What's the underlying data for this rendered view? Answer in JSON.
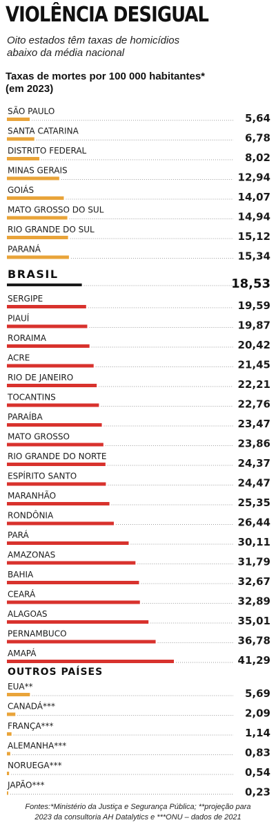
{
  "header": {
    "title": "VIOLÊNCIA DESIGUAL",
    "subtitle_line1": "Oito estados têm taxas de homicídios",
    "subtitle_line2": "abaixo da média nacional",
    "chart_title_line1": "Taxas de mortes por 100 000 habitantes*",
    "chart_title_line2": "(em 2023)"
  },
  "colors": {
    "below_average": "#e9a43a",
    "above_average": "#d8322d",
    "national": "#1a1a1a"
  },
  "chart_data": {
    "type": "bar",
    "orientation": "horizontal",
    "title": "Taxas de mortes por 100 000 habitantes* (em 2023)",
    "groups": [
      {
        "name": "below_average",
        "categories": [
          "SÃO PAULO",
          "SANTA CATARINA",
          "DISTRITO FEDERAL",
          "MINAS GERAIS",
          "GOIÁS",
          "MATO GROSSO DO SUL",
          "RIO GRANDE DO SUL",
          "PARANÁ"
        ],
        "values": [
          5.64,
          6.78,
          8.02,
          12.94,
          14.07,
          14.94,
          15.12,
          15.34
        ],
        "labels": [
          "5,64",
          "6,78",
          "8,02",
          "12,94",
          "14,07",
          "14,94",
          "15,12",
          "15,34"
        ]
      },
      {
        "name": "national",
        "categories": [
          "BRASIL"
        ],
        "values": [
          18.53
        ],
        "labels": [
          "18,53"
        ]
      },
      {
        "name": "above_average",
        "categories": [
          "SERGIPE",
          "PIAUÍ",
          "RORAIMA",
          "ACRE",
          "RIO DE JANEIRO",
          "TOCANTINS",
          "PARAÍBA",
          "MATO GROSSO",
          "RIO GRANDE DO NORTE",
          "ESPÍRITO SANTO",
          "MARANHÃO",
          "RONDÔNIA",
          "PARÁ",
          "AMAZONAS",
          "BAHIA",
          "CEARÁ",
          "ALAGOAS",
          "PERNAMBUCO",
          "AMAPÁ"
        ],
        "values": [
          19.59,
          19.87,
          20.42,
          21.45,
          22.21,
          22.76,
          23.47,
          23.86,
          24.37,
          24.47,
          25.35,
          26.44,
          30.11,
          31.79,
          32.67,
          32.89,
          35.01,
          36.78,
          41.29
        ],
        "labels": [
          "19,59",
          "19,87",
          "20,42",
          "21,45",
          "22,21",
          "22,76",
          "23,47",
          "23,86",
          "24,37",
          "24,47",
          "25,35",
          "26,44",
          "30,11",
          "31,79",
          "32,67",
          "32,89",
          "35,01",
          "36,78",
          "41,29"
        ]
      },
      {
        "name": "other_countries",
        "heading": "OUTROS PAÍSES",
        "categories": [
          "EUA**",
          "CANADÁ***",
          "FRANÇA***",
          "ALEMANHA***",
          "NORUEGA***",
          "JAPÃO***"
        ],
        "values": [
          5.69,
          2.09,
          1.14,
          0.83,
          0.54,
          0.23
        ],
        "labels": [
          "5,69",
          "2,09",
          "1,14",
          "0,83",
          "0,54",
          "0,23"
        ]
      }
    ],
    "xlim": [
      0,
      41.29
    ]
  },
  "footer": {
    "line1": "Fontes:*Ministério da Justiça e Segurança Pública; **projeção para",
    "line2": "2023 da consultoria AH Datalytics e ***ONU – dados de 2021"
  }
}
